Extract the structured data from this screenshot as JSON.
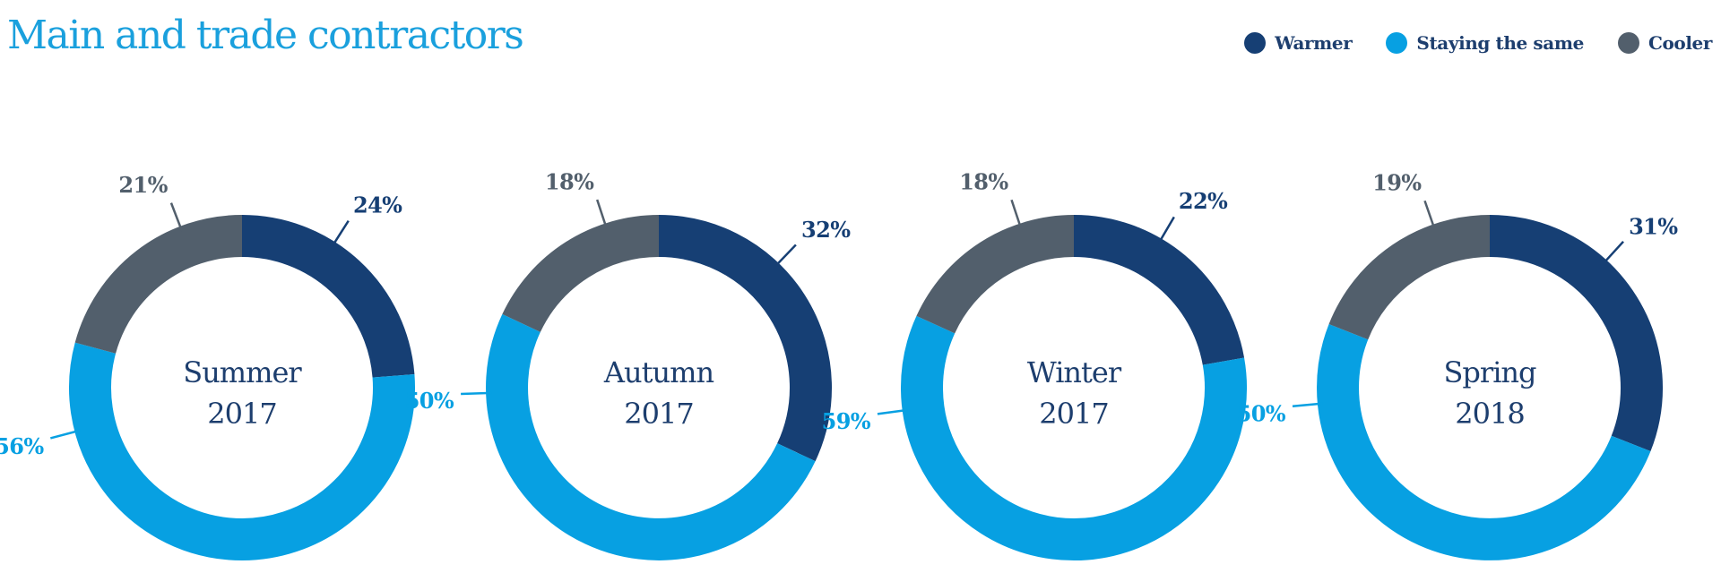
{
  "title": "Main and trade contractors",
  "colors": {
    "warmer": "#163f74",
    "same": "#07a0e2",
    "cooler": "#525f6c",
    "title": "#1aa0dd",
    "center_text": "#1d3e6e"
  },
  "legend": [
    {
      "key": "warmer",
      "label": "Warmer"
    },
    {
      "key": "same",
      "label": "Staying the same"
    },
    {
      "key": "cooler",
      "label": "Cooler"
    }
  ],
  "chart_data": [
    {
      "type": "pie",
      "variant": "donut",
      "center_label": [
        "Summer",
        "2017"
      ],
      "slices": [
        {
          "key": "warmer",
          "label": "Warmer",
          "value": 24,
          "display": "24%"
        },
        {
          "key": "same",
          "label": "Staying the same",
          "value": 56,
          "display": "56%"
        },
        {
          "key": "cooler",
          "label": "Cooler",
          "value": 21,
          "display": "21%"
        }
      ]
    },
    {
      "type": "pie",
      "variant": "donut",
      "center_label": [
        "Autumn",
        "2017"
      ],
      "slices": [
        {
          "key": "warmer",
          "label": "Warmer",
          "value": 32,
          "display": "32%"
        },
        {
          "key": "same",
          "label": "Staying the same",
          "value": 50,
          "display": "50%"
        },
        {
          "key": "cooler",
          "label": "Cooler",
          "value": 18,
          "display": "18%"
        }
      ]
    },
    {
      "type": "pie",
      "variant": "donut",
      "center_label": [
        "Winter",
        "2017"
      ],
      "slices": [
        {
          "key": "warmer",
          "label": "Warmer",
          "value": 22,
          "display": "22%"
        },
        {
          "key": "same",
          "label": "Staying the same",
          "value": 59,
          "display": "59%"
        },
        {
          "key": "cooler",
          "label": "Cooler",
          "value": 18,
          "display": "18%"
        }
      ]
    },
    {
      "type": "pie",
      "variant": "donut",
      "center_label": [
        "Spring",
        "2018"
      ],
      "slices": [
        {
          "key": "warmer",
          "label": "Warmer",
          "value": 31,
          "display": "31%"
        },
        {
          "key": "same",
          "label": "Staying the same",
          "value": 50,
          "display": "50%"
        },
        {
          "key": "cooler",
          "label": "Cooler",
          "value": 19,
          "display": "19%"
        }
      ]
    }
  ]
}
